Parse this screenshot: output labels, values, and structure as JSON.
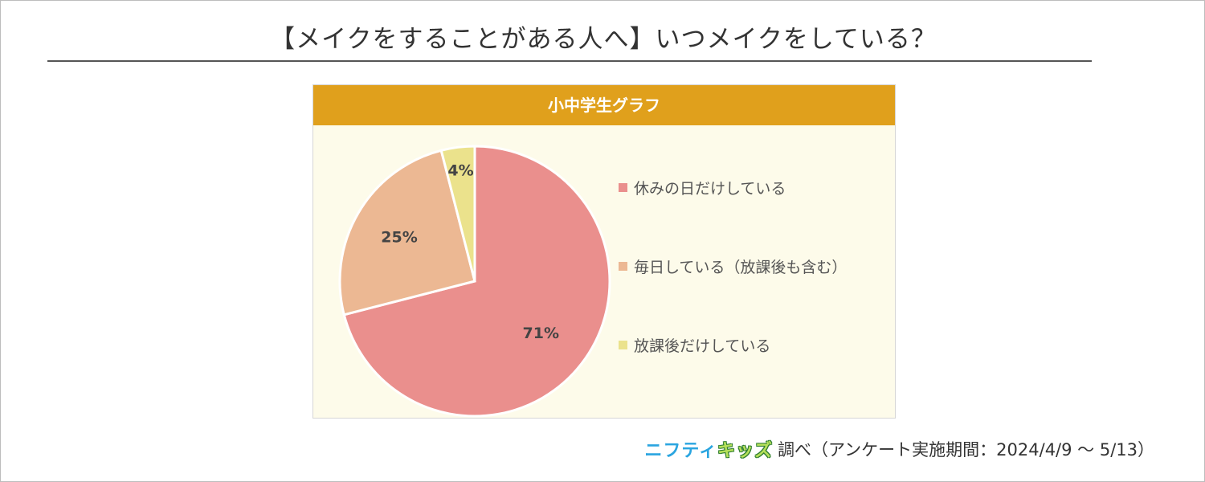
{
  "page": {
    "title": "【メイクをすることがある人へ】いつメイクをしている？"
  },
  "chart_data": {
    "type": "pie",
    "title": "小中学生グラフ",
    "slices": [
      {
        "label": "休みの日だけしている",
        "value": 71,
        "display": "71%",
        "color": "#ea8f8d"
      },
      {
        "label": "毎日している（放課後も含む）",
        "value": 25,
        "display": "25%",
        "color": "#ecb893"
      },
      {
        "label": "放課後だけしている",
        "value": 4,
        "display": "4%",
        "color": "#ebe28c"
      }
    ],
    "legend_position": "right",
    "start": "12 o'clock",
    "direction": "clockwise"
  },
  "footer": {
    "brand_part1": "ニフティ",
    "brand_part2": "キッズ",
    "note": "調べ（アンケート実施期間：2024/4/9 ～ 5/13）"
  }
}
